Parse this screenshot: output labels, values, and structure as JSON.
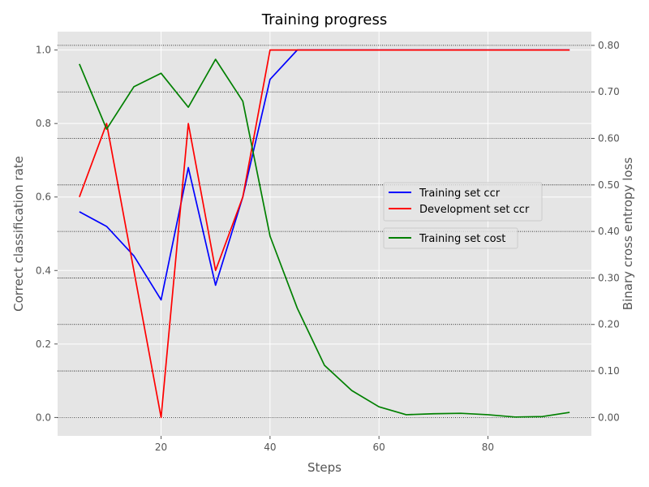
{
  "chart_data": {
    "type": "line",
    "title": "Training progress",
    "xlabel": "Steps",
    "ylabel_left": "Correct classification rate",
    "ylabel_right": "Binary cross entropy loss",
    "x": [
      5,
      10,
      15,
      20,
      25,
      30,
      35,
      40,
      45,
      50,
      55,
      60,
      65,
      70,
      75,
      80,
      85,
      90,
      95
    ],
    "xlim": [
      1,
      99
    ],
    "ylim_left": [
      -0.05,
      1.05
    ],
    "ylim_right": [
      -0.0395,
      0.8295
    ],
    "x_ticks": [
      20,
      40,
      60,
      80
    ],
    "x_tick_labels": [
      "20",
      "40",
      "60",
      "80"
    ],
    "y_left_ticks": [
      0.0,
      0.2,
      0.4,
      0.6,
      0.8,
      1.0
    ],
    "y_left_tick_labels": [
      "0.0",
      "0.2",
      "0.4",
      "0.6",
      "0.8",
      "1.0"
    ],
    "y_right_ticks": [
      0.0,
      0.1,
      0.2,
      0.3,
      0.4,
      0.5,
      0.6,
      0.7,
      0.8
    ],
    "y_right_tick_labels": [
      "0.00",
      "0.10",
      "0.20",
      "0.30",
      "0.40",
      "0.50",
      "0.60",
      "0.70",
      "0.80"
    ],
    "grid": true,
    "right_grid_style": "dotted",
    "legend_position": "center-right",
    "series": [
      {
        "name": "Training set ccr",
        "axis": "left",
        "color": "#0000ff",
        "values": [
          0.56,
          0.52,
          0.44,
          0.32,
          0.68,
          0.36,
          0.6,
          0.92,
          1.0,
          1.0,
          1.0,
          1.0,
          1.0,
          1.0,
          1.0,
          1.0,
          1.0,
          1.0,
          1.0
        ]
      },
      {
        "name": "Development set ccr",
        "axis": "left",
        "color": "#ff0000",
        "values": [
          0.6,
          0.8,
          0.4,
          0.0,
          0.8,
          0.4,
          0.6,
          1.0,
          1.0,
          1.0,
          1.0,
          1.0,
          1.0,
          1.0,
          1.0,
          1.0,
          1.0,
          1.0,
          1.0
        ]
      },
      {
        "name": "Training set cost",
        "axis": "right",
        "color": "#008000",
        "values": [
          0.76,
          0.62,
          0.711,
          0.74,
          0.667,
          0.77,
          0.68,
          0.39,
          0.235,
          0.112,
          0.058,
          0.023,
          0.006,
          0.008,
          0.009,
          0.006,
          0.001,
          0.002,
          0.011
        ]
      }
    ]
  }
}
